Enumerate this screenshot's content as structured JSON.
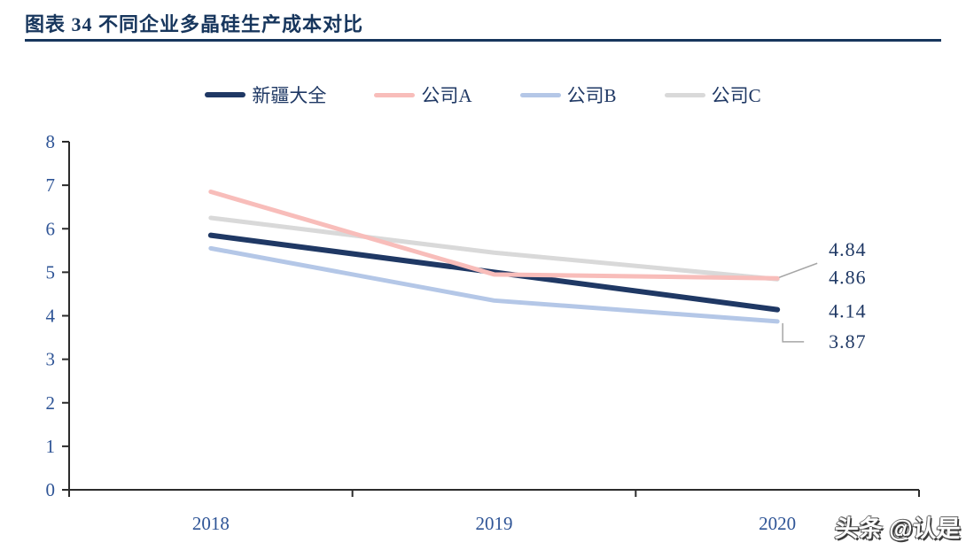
{
  "header": {
    "title": "图表 34 不同企业多晶硅生产成本对比"
  },
  "watermark": "头条 @认是",
  "colors": {
    "title": "#17365D",
    "axis_line": "#2b2b2b",
    "tick_label": "#2E5496",
    "data_label": "#1F3864",
    "legend_text": "#1F3864",
    "leader_line": "#A6A6A6",
    "background": "#FFFFFF"
  },
  "chart_data": {
    "type": "line",
    "title": "图表 34 不同企业多晶硅生产成本对比",
    "categories": [
      "2018",
      "2019",
      "2020"
    ],
    "series": [
      {
        "name": "新疆大全",
        "color": "#1F3864",
        "stroke_width": 6,
        "values": [
          5.85,
          5.0,
          4.14
        ]
      },
      {
        "name": "公司A",
        "color": "#F8BDBA",
        "stroke_width": 5,
        "values": [
          6.85,
          4.95,
          4.86
        ]
      },
      {
        "name": "公司B",
        "color": "#B4C7E7",
        "stroke_width": 5,
        "values": [
          5.55,
          4.35,
          3.87
        ]
      },
      {
        "name": "公司C",
        "color": "#D9D9D9",
        "stroke_width": 5,
        "values": [
          6.25,
          5.45,
          4.84
        ]
      }
    ],
    "end_labels": [
      {
        "text": "4.84",
        "series": "公司C"
      },
      {
        "text": "4.86",
        "series": "公司A"
      },
      {
        "text": "4.14",
        "series": "新疆大全"
      },
      {
        "text": "3.87",
        "series": "公司B"
      }
    ],
    "xlabel": "",
    "ylabel": "",
    "ylim": [
      0,
      8
    ],
    "ystep": 1,
    "grid": false,
    "legend_position": "top"
  }
}
